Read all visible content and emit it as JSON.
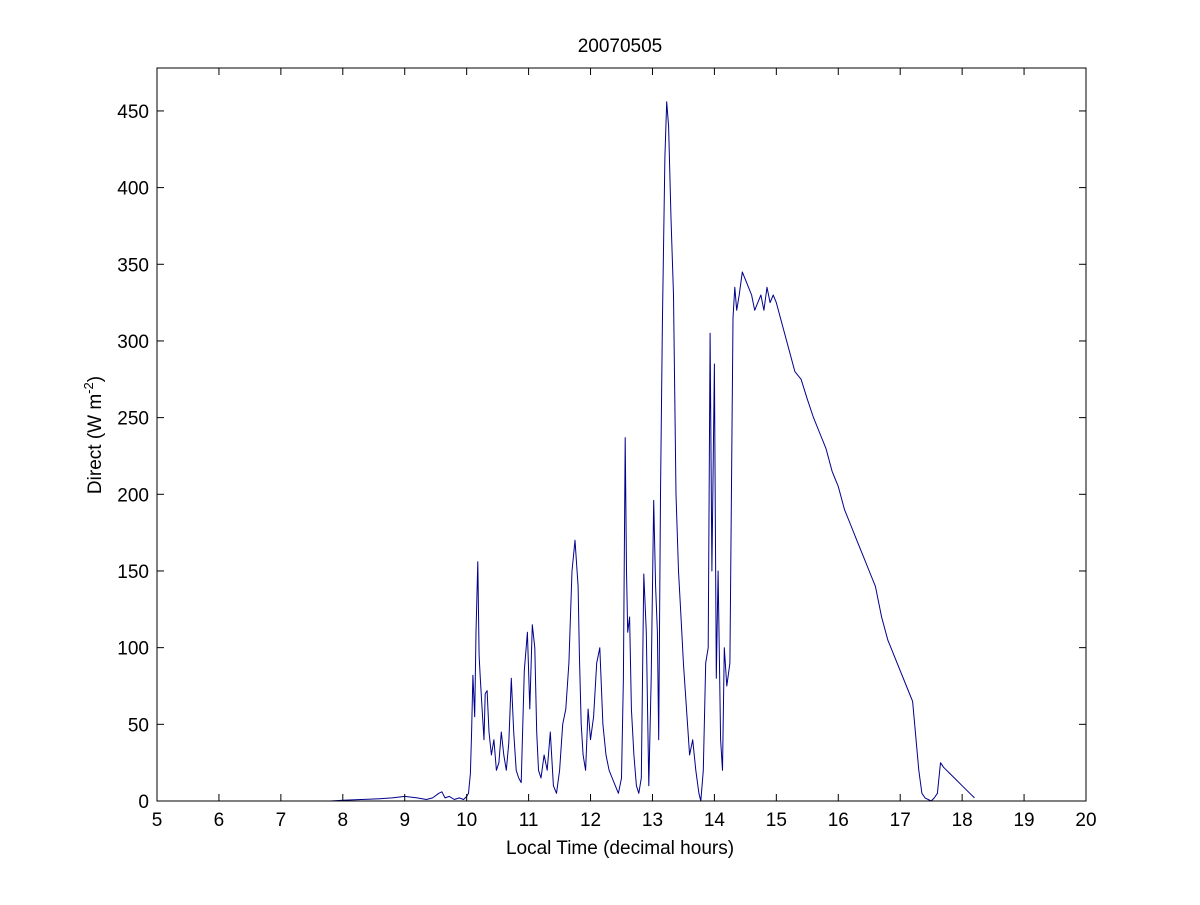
{
  "chart_data": {
    "type": "line",
    "title": "20070505",
    "xlabel": "Local Time (decimal hours)",
    "ylabel_main": "Direct (W m",
    "ylabel_sup": "-2",
    "ylabel_end": ")",
    "xlim": [
      5,
      20
    ],
    "ylim": [
      0,
      478
    ],
    "xticks": [
      5,
      6,
      7,
      8,
      9,
      10,
      11,
      12,
      13,
      14,
      15,
      16,
      17,
      18,
      19,
      20
    ],
    "yticks": [
      0,
      50,
      100,
      150,
      200,
      250,
      300,
      350,
      400,
      450
    ],
    "grid": false,
    "line_color": "#00008b",
    "series": [
      {
        "x": [
          5.7,
          7.0,
          7.8,
          8.0,
          8.3,
          8.6,
          8.8,
          9.0,
          9.2,
          9.35,
          9.45,
          9.55,
          9.6,
          9.65,
          9.72,
          9.8,
          9.88,
          9.95,
          10.0,
          10.03,
          10.06,
          10.08,
          10.1,
          10.13,
          10.15,
          10.18,
          10.2,
          10.22,
          10.25,
          10.28,
          10.3,
          10.33,
          10.36,
          10.4,
          10.44,
          10.48,
          10.52,
          10.56,
          10.6,
          10.64,
          10.68,
          10.72,
          10.76,
          10.8,
          10.84,
          10.88,
          10.93,
          10.98,
          11.02,
          11.06,
          11.1,
          11.13,
          11.16,
          11.2,
          11.25,
          11.3,
          11.35,
          11.4,
          11.45,
          11.5,
          11.55,
          11.6,
          11.65,
          11.7,
          11.75,
          11.8,
          11.82,
          11.85,
          11.88,
          11.92,
          11.96,
          12.0,
          12.05,
          12.1,
          12.15,
          12.2,
          12.25,
          12.3,
          12.35,
          12.4,
          12.45,
          12.5,
          12.53,
          12.56,
          12.58,
          12.6,
          12.63,
          12.66,
          12.7,
          12.74,
          12.78,
          12.82,
          12.86,
          12.9,
          12.94,
          12.98,
          13.02,
          13.05,
          13.08,
          13.1,
          13.13,
          13.16,
          13.2,
          13.23,
          13.26,
          13.3,
          13.34,
          13.38,
          13.42,
          13.46,
          13.5,
          13.55,
          13.6,
          13.65,
          13.7,
          13.75,
          13.78,
          13.82,
          13.86,
          13.9,
          13.93,
          13.96,
          14.0,
          14.03,
          14.06,
          14.1,
          14.13,
          14.16,
          14.2,
          14.25,
          14.3,
          14.33,
          14.36,
          14.4,
          14.45,
          14.5,
          14.55,
          14.6,
          14.65,
          14.7,
          14.75,
          14.8,
          14.85,
          14.9,
          14.95,
          15.0,
          15.1,
          15.2,
          15.3,
          15.4,
          15.5,
          15.6,
          15.7,
          15.8,
          15.9,
          16.0,
          16.1,
          16.2,
          16.3,
          16.4,
          16.5,
          16.6,
          16.7,
          16.8,
          16.9,
          17.0,
          17.1,
          17.2,
          17.3,
          17.35,
          17.4,
          17.5,
          17.55,
          17.6,
          17.65,
          17.7,
          17.8,
          17.9,
          18.0,
          18.1,
          18.2
        ],
        "y": [
          0,
          0,
          0,
          0.5,
          1,
          1.5,
          2,
          3,
          2,
          1,
          2,
          5,
          6,
          2,
          3,
          1,
          2,
          1,
          3,
          5,
          18,
          45,
          82,
          55,
          110,
          156,
          95,
          80,
          60,
          40,
          70,
          72,
          45,
          30,
          40,
          20,
          25,
          45,
          30,
          20,
          38,
          80,
          45,
          20,
          15,
          12,
          85,
          110,
          60,
          115,
          100,
          45,
          20,
          15,
          30,
          20,
          45,
          10,
          5,
          20,
          50,
          60,
          90,
          150,
          170,
          140,
          95,
          50,
          30,
          20,
          60,
          40,
          55,
          90,
          100,
          50,
          30,
          20,
          15,
          10,
          5,
          15,
          80,
          237,
          150,
          110,
          120,
          60,
          30,
          10,
          5,
          15,
          148,
          110,
          10,
          80,
          196,
          140,
          110,
          40,
          200,
          312,
          420,
          456,
          440,
          380,
          330,
          200,
          150,
          120,
          90,
          60,
          30,
          40,
          20,
          5,
          0,
          20,
          90,
          100,
          305,
          150,
          285,
          80,
          150,
          40,
          20,
          100,
          75,
          90,
          315,
          335,
          320,
          330,
          345,
          340,
          335,
          330,
          320,
          325,
          330,
          320,
          335,
          325,
          330,
          325,
          310,
          295,
          280,
          275,
          262,
          250,
          240,
          230,
          215,
          205,
          190,
          180,
          170,
          160,
          150,
          140,
          120,
          105,
          95,
          85,
          75,
          65,
          20,
          5,
          2,
          0,
          2,
          5,
          25,
          22,
          18,
          14,
          10,
          6,
          2
        ]
      }
    ]
  }
}
